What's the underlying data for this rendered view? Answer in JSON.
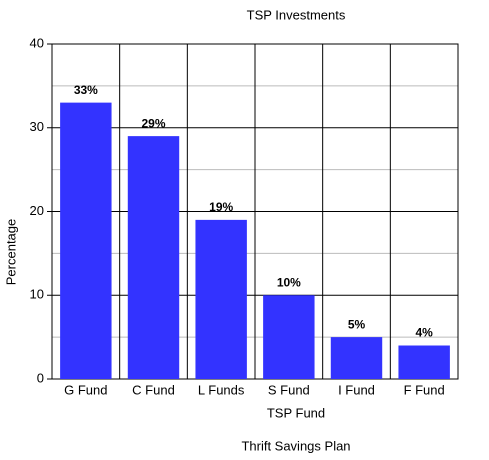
{
  "chart_data": {
    "type": "bar",
    "title": "TSP Investments",
    "x_label": "TSP Fund",
    "y_label": "Percentage",
    "subtitle": "Thrift Savings Plan",
    "categories": [
      "G Fund",
      "C Fund",
      "L Funds",
      "S Fund",
      "I Fund",
      "F Fund"
    ],
    "values": [
      33,
      29,
      19,
      10,
      5,
      4
    ],
    "value_labels": [
      "33%",
      "29%",
      "19%",
      "10%",
      "5%",
      "4%"
    ],
    "color": "#3333ff",
    "ylim": [
      0,
      40
    ],
    "yticks": [
      0,
      10,
      20,
      30,
      40
    ],
    "minor_yticks": [
      5,
      15,
      25,
      35
    ],
    "grid": true
  }
}
